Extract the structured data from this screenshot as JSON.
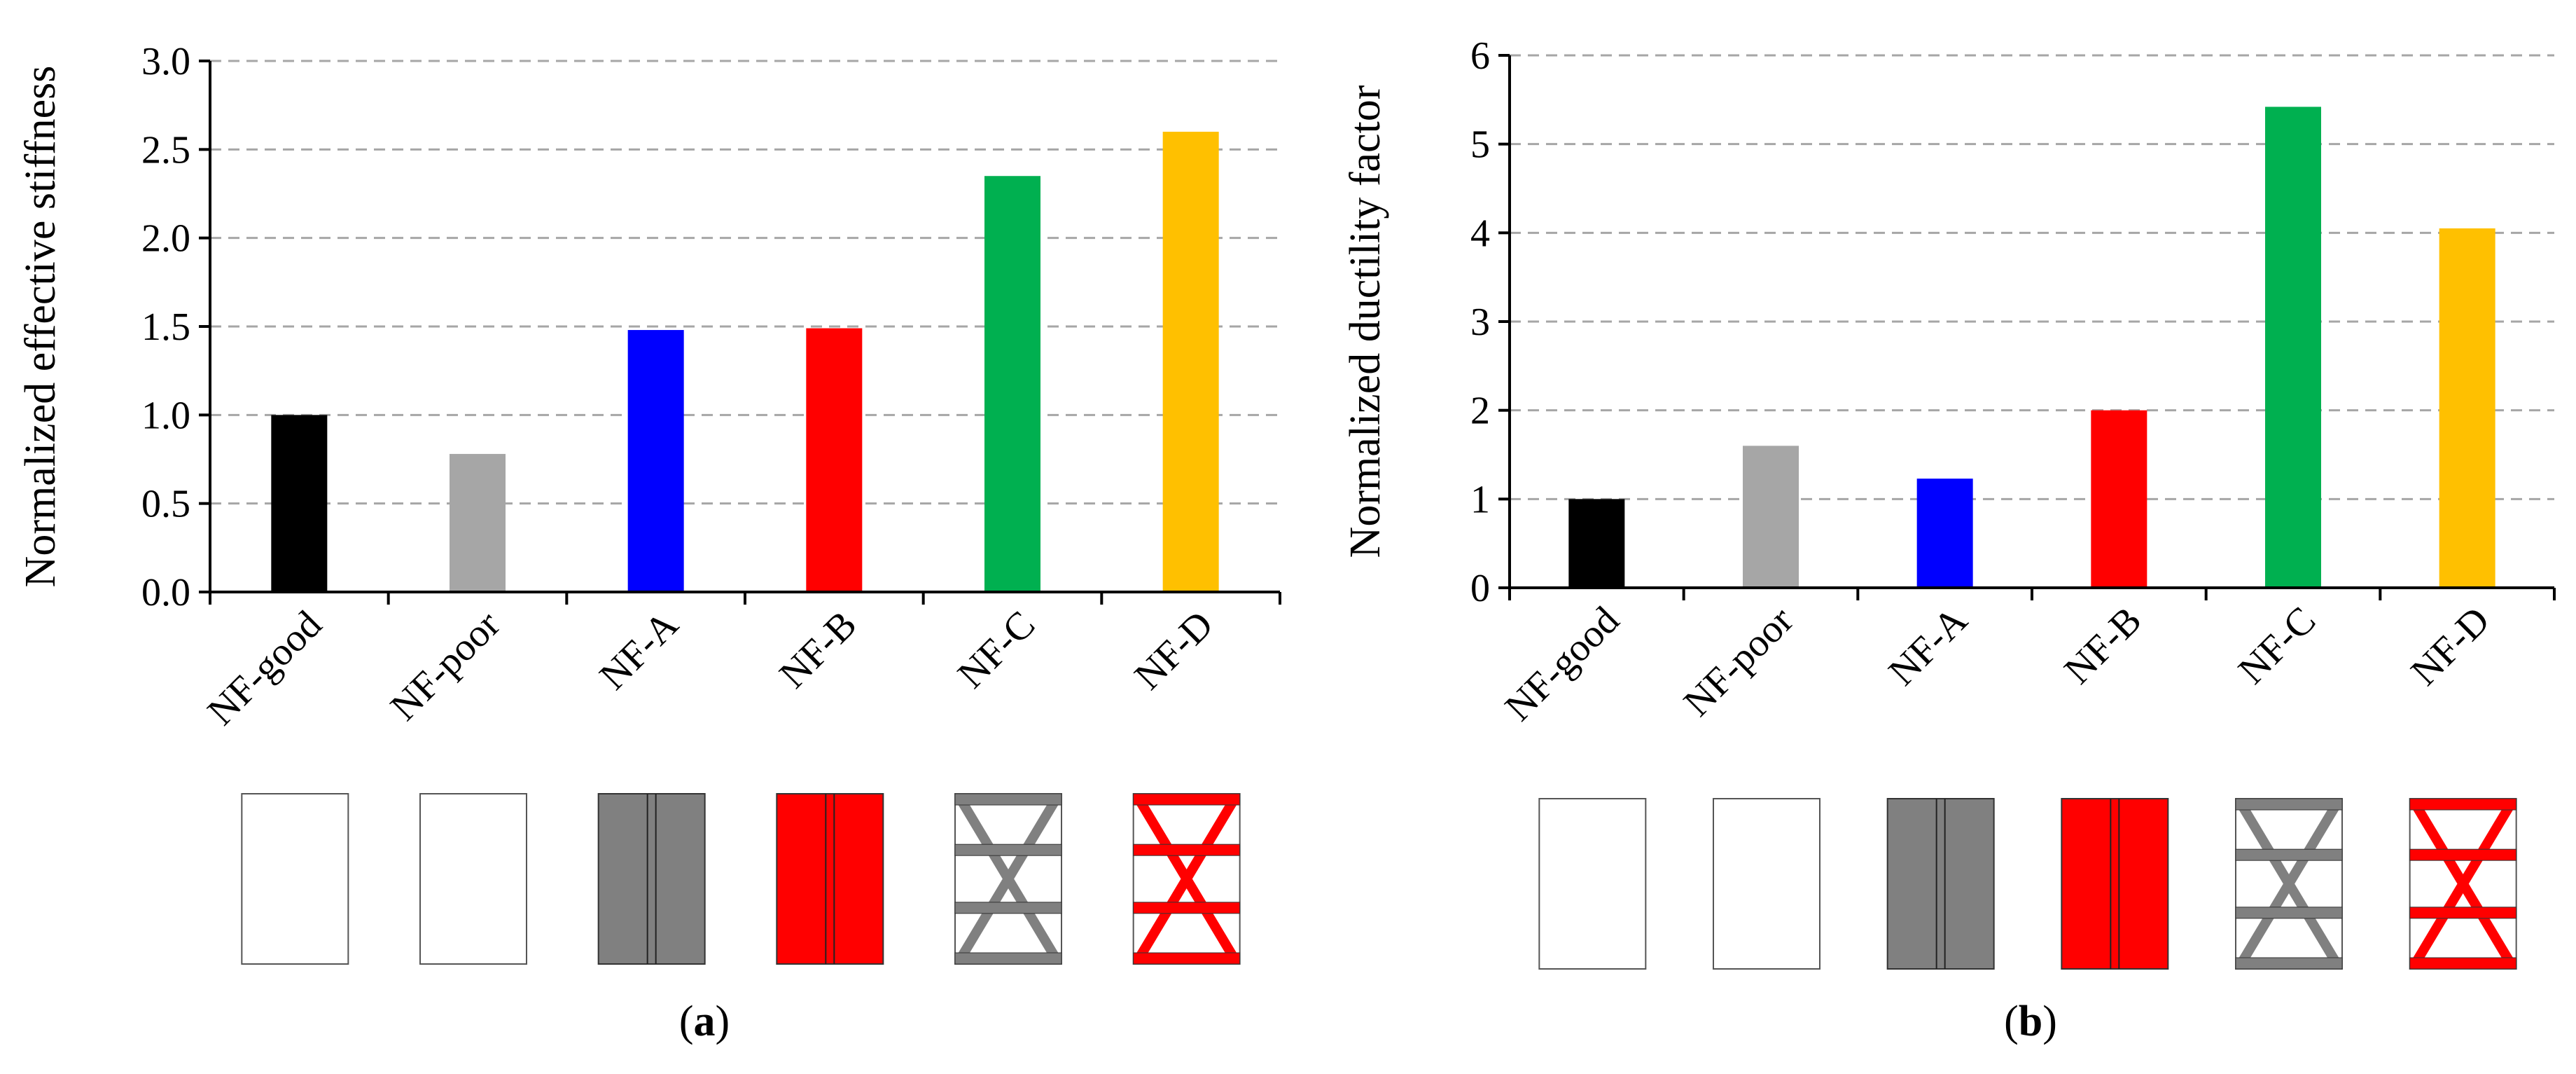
{
  "chart_data": [
    {
      "type": "bar",
      "caption_prefix": "(",
      "caption_letter": "a",
      "caption_suffix": ")",
      "ylabel": "Normalized effective stiffness",
      "xlabel": "",
      "ylim": [
        0,
        3.0
      ],
      "yticks": [
        "0.0",
        "0.5",
        "1.0",
        "1.5",
        "2.0",
        "2.5",
        "3.0"
      ],
      "grid": "horizontal-dashed",
      "categories": [
        "NF-good",
        "NF-poor",
        "NF-A",
        "NF-B",
        "NF-C",
        "NF-D"
      ],
      "values": [
        1.0,
        0.78,
        1.48,
        1.49,
        2.35,
        2.6
      ],
      "colors": [
        "#000000",
        "#a6a6a6",
        "#0000ff",
        "#ff0000",
        "#00b050",
        "#ffc000"
      ],
      "schematics": [
        "empty",
        "empty",
        "grey-panel",
        "red-panel",
        "grey-x-brace",
        "red-x-brace"
      ]
    },
    {
      "type": "bar",
      "caption_prefix": "(",
      "caption_letter": "b",
      "caption_suffix": ")",
      "ylabel": "Normalized ductility factor",
      "xlabel": "",
      "ylim": [
        0,
        6
      ],
      "yticks": [
        "0",
        "1",
        "2",
        "3",
        "4",
        "5",
        "6"
      ],
      "grid": "horizontal-dashed",
      "categories": [
        "NF-good",
        "NF-poor",
        "NF-A",
        "NF-B",
        "NF-C",
        "NF-D"
      ],
      "values": [
        1.0,
        1.6,
        1.23,
        2.0,
        5.42,
        4.05
      ],
      "colors": [
        "#000000",
        "#a6a6a6",
        "#0000ff",
        "#ff0000",
        "#00b050",
        "#ffc000"
      ],
      "schematics": [
        "empty",
        "empty",
        "grey-panel",
        "red-panel",
        "grey-x-brace",
        "red-x-brace"
      ]
    }
  ],
  "schematic_colors": {
    "grey": "#808080",
    "red": "#ff0000",
    "frame": "#555555"
  }
}
